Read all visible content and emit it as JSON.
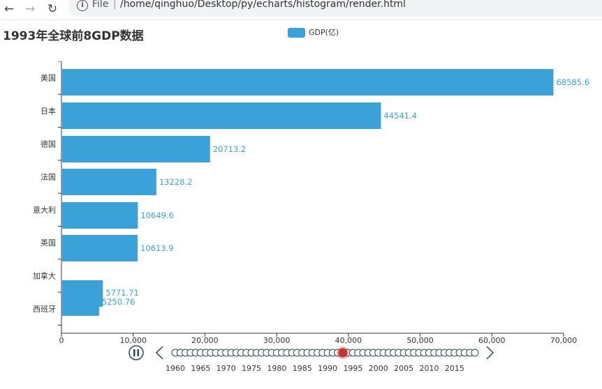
{
  "browser": {
    "back_icon": "arrow-left-icon",
    "forward_icon": "arrow-right-icon",
    "reload_icon": "reload-icon",
    "info_icon": "info-icon",
    "scheme": "File",
    "url": "/home/qinghuo/Desktop/py/echarts/histogram/render.html"
  },
  "chart_data": {
    "type": "bar",
    "orientation": "horizontal",
    "title": "1993年全球前8GDP数据",
    "legend": {
      "label": "GDP(亿)",
      "color": "#3aa2d9",
      "placement": "top-center"
    },
    "categories": [
      "美国",
      "日本",
      "德国",
      "法国",
      "意大利",
      "英国",
      "加拿大",
      "西班牙"
    ],
    "series": [
      {
        "name": "GDP(亿)",
        "values": [
          68585.6,
          44541.4,
          20713.2,
          13228.2,
          10649.6,
          10613.9,
          5771.71,
          5250.76
        ],
        "labels": [
          "68585.6",
          "44541.4",
          "20713.2",
          "13228.2",
          "10649.6",
          "10613.9",
          "5771.71",
          "5250.76"
        ]
      }
    ],
    "xlim": [
      0,
      70000
    ],
    "x_ticks": [
      0,
      10000,
      20000,
      30000,
      40000,
      50000,
      60000,
      70000
    ],
    "x_tick_labels": [
      "0",
      "10,000",
      "20,000",
      "30,000",
      "40,000",
      "50,000",
      "60,000",
      "70,000"
    ],
    "grid": false,
    "bar_color": "#3aa2d9",
    "label_color": "#3aa2d9"
  },
  "timeline": {
    "start_year": 1960,
    "end_year": 2019,
    "current_year": 1993,
    "labels": [
      "1960",
      "1965",
      "1970",
      "1975",
      "1980",
      "1985",
      "1990",
      "1995",
      "2000",
      "2005",
      "2010",
      "2015"
    ],
    "active_color": "#c23531",
    "pause_icon": "pause-icon",
    "prev_icon": "chevron-left-icon",
    "next_icon": "chevron-right-icon"
  }
}
